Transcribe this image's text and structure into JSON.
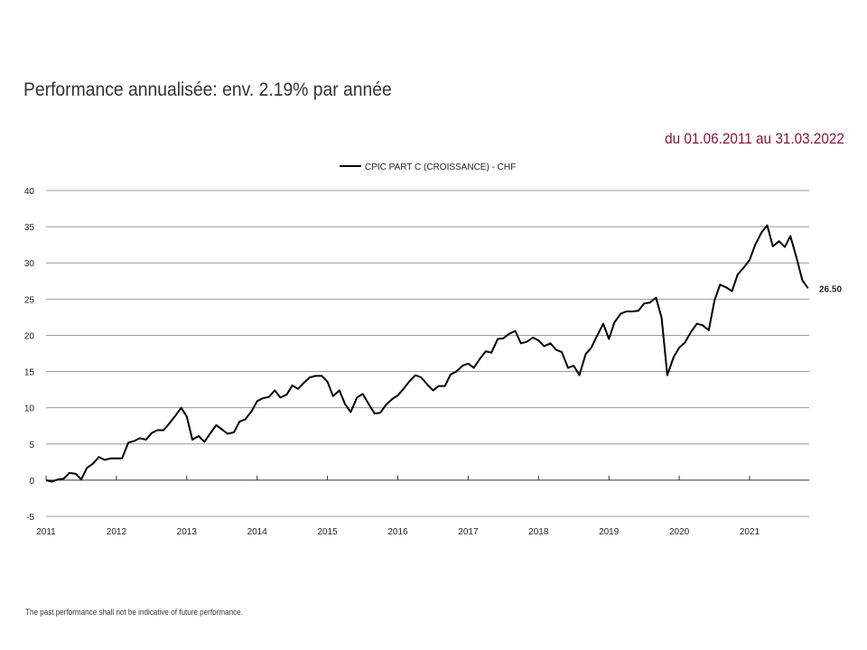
{
  "header": {
    "title": "Performance annualisée: env. 2.19% par année",
    "period": "du 01.06.2011 au 31.03.2022"
  },
  "footer": {
    "disclaimer": "The past performance shall not be indicative of future performance."
  },
  "colors": {
    "line": "#000000",
    "grid": "#9a9a9a",
    "period_text": "#8a1538"
  },
  "chart_data": {
    "type": "line",
    "title": "",
    "xlabel": "",
    "ylabel": "",
    "ylim": [
      -5,
      40
    ],
    "yticks": [
      -5,
      0,
      5,
      10,
      15,
      20,
      25,
      30,
      35,
      40
    ],
    "xlim": [
      2011.0,
      2021.85
    ],
    "xticks": [
      "2011",
      "2012",
      "2013",
      "2014",
      "2015",
      "2016",
      "2017",
      "2018",
      "2019",
      "2020",
      "2021"
    ],
    "grid": true,
    "legend": "top-center",
    "end_label": "26.50",
    "series": [
      {
        "name": "CPIC PART C (CROISSANCE) - CHF",
        "x": [
          2011.0,
          2011.08,
          2011.17,
          2011.25,
          2011.33,
          2011.42,
          2011.5,
          2011.58,
          2011.67,
          2011.75,
          2011.83,
          2011.92,
          2012.0,
          2012.08,
          2012.17,
          2012.25,
          2012.33,
          2012.42,
          2012.5,
          2012.58,
          2012.67,
          2012.75,
          2012.83,
          2012.92,
          2013.0,
          2013.08,
          2013.17,
          2013.25,
          2013.33,
          2013.42,
          2013.5,
          2013.58,
          2013.67,
          2013.75,
          2013.83,
          2013.92,
          2014.0,
          2014.08,
          2014.17,
          2014.25,
          2014.33,
          2014.42,
          2014.5,
          2014.58,
          2014.67,
          2014.75,
          2014.83,
          2014.92,
          2015.0,
          2015.08,
          2015.17,
          2015.25,
          2015.33,
          2015.42,
          2015.5,
          2015.58,
          2015.67,
          2015.75,
          2015.83,
          2015.92,
          2016.0,
          2016.08,
          2016.17,
          2016.25,
          2016.33,
          2016.42,
          2016.5,
          2016.58,
          2016.67,
          2016.75,
          2016.83,
          2016.92,
          2017.0,
          2017.08,
          2017.17,
          2017.25,
          2017.33,
          2017.42,
          2017.5,
          2017.58,
          2017.67,
          2017.75,
          2017.83,
          2017.92,
          2018.0,
          2018.08,
          2018.17,
          2018.25,
          2018.33,
          2018.42,
          2018.5,
          2018.58,
          2018.67,
          2018.75,
          2018.83,
          2018.92,
          2019.0,
          2019.08,
          2019.17,
          2019.25,
          2019.33,
          2019.42,
          2019.5,
          2019.58,
          2019.67,
          2019.75,
          2019.83,
          2019.92,
          2020.0,
          2020.08,
          2020.17,
          2020.25,
          2020.33,
          2020.42,
          2020.5,
          2020.58,
          2020.67,
          2020.75,
          2020.83,
          2020.92,
          2021.0,
          2021.08,
          2021.17,
          2021.25,
          2021.33,
          2021.42,
          2021.5,
          2021.58,
          2021.67,
          2021.75,
          2021.83
        ],
        "values": [
          0.0,
          -0.2,
          0.1,
          0.2,
          1.0,
          0.9,
          0.1,
          1.7,
          2.3,
          3.2,
          2.8,
          3.0,
          3.0,
          3.0,
          5.2,
          5.4,
          5.8,
          5.6,
          6.5,
          6.9,
          6.9,
          7.8,
          8.8,
          10.0,
          8.8,
          5.6,
          6.1,
          5.3,
          6.4,
          7.6,
          7.0,
          6.4,
          6.6,
          8.1,
          8.4,
          9.5,
          10.9,
          11.3,
          11.5,
          12.4,
          11.4,
          11.8,
          13.1,
          12.6,
          13.5,
          14.2,
          14.4,
          14.4,
          13.6,
          11.6,
          12.4,
          10.5,
          9.4,
          11.4,
          11.9,
          10.6,
          9.2,
          9.3,
          10.4,
          11.2,
          11.7,
          12.6,
          13.7,
          14.5,
          14.2,
          13.2,
          12.4,
          13.0,
          13.0,
          14.6,
          15.0,
          15.8,
          16.1,
          15.5,
          16.8,
          17.8,
          17.6,
          19.5,
          19.6,
          20.2,
          20.6,
          18.9,
          19.1,
          19.7,
          19.3,
          18.5,
          18.9,
          18.0,
          17.7,
          15.5,
          15.8,
          14.5,
          17.4,
          18.3,
          19.9,
          21.6,
          19.5,
          21.8,
          23.0,
          23.3,
          23.3,
          23.4,
          24.4,
          24.5,
          25.2,
          22.4,
          14.5,
          17.0,
          18.3,
          19.0,
          20.5,
          21.6,
          21.4,
          20.7,
          24.8,
          27.0,
          26.6,
          26.1,
          28.4,
          29.4,
          30.4,
          32.5,
          34.2,
          35.2,
          32.3,
          33.0,
          32.2,
          33.7,
          30.6,
          27.6,
          26.5
        ]
      }
    ]
  }
}
